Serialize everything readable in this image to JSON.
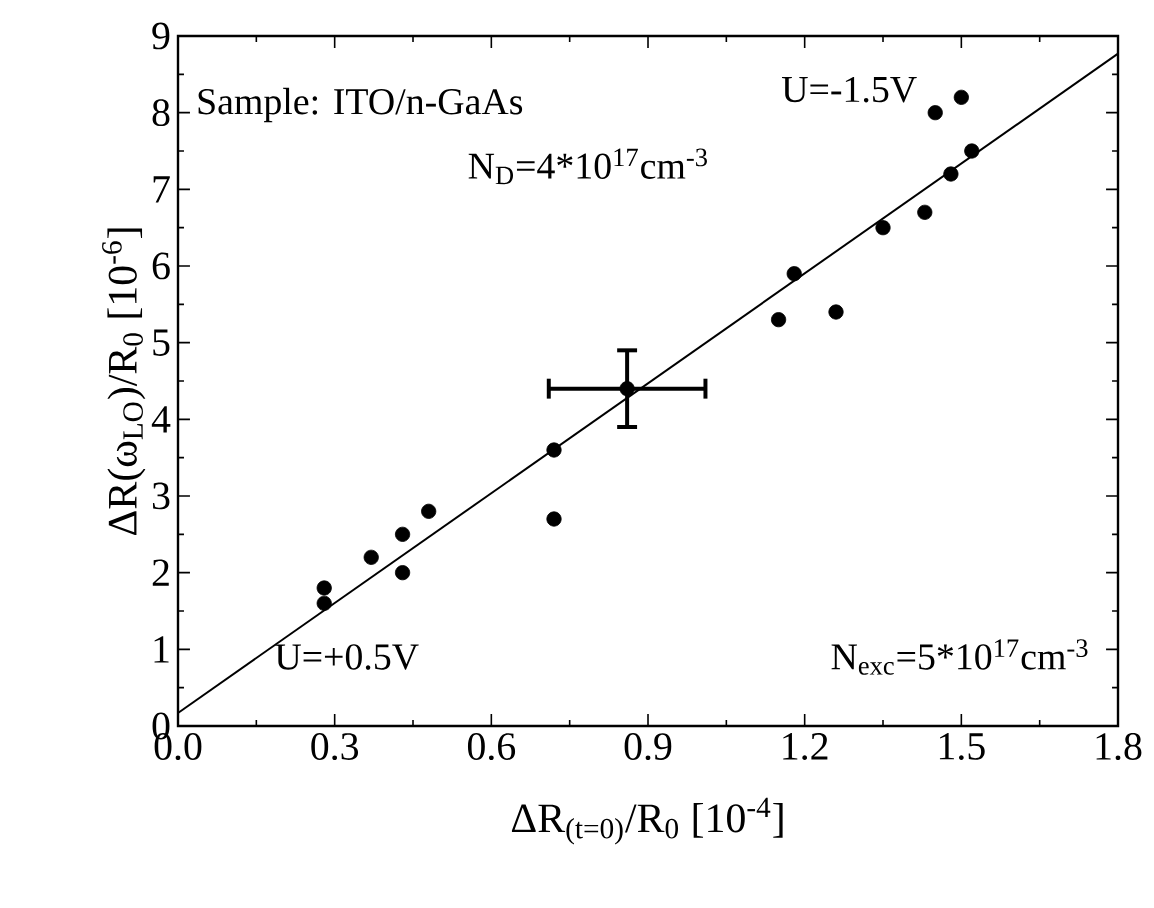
{
  "chart_data": {
    "type": "scatter",
    "xlabel": "ΔR$_{(t=0)}$/R$_{0}$ [10$^{-4}$]",
    "ylabel": "ΔR(ω$_{LO}$)/R$_{0}$ [10$^{-6}$]",
    "xlim": [
      0,
      1.8
    ],
    "ylim": [
      0,
      9
    ],
    "xticks": [
      {
        "value": 0,
        "label": "0.0"
      },
      0.3,
      0.6,
      0.9,
      1.2,
      1.5,
      1.8
    ],
    "yticks": [
      0,
      1,
      2,
      3,
      4,
      5,
      6,
      7,
      8,
      9
    ],
    "series": [
      {
        "type": "scatter",
        "marker": "circle",
        "color": "#000000",
        "x": [
          0.28,
          0.28,
          0.37,
          0.43,
          0.43,
          0.48,
          0.72,
          0.72,
          0.86,
          1.15,
          1.18,
          1.26,
          1.35,
          1.43,
          1.45,
          1.48,
          1.5,
          1.52
        ],
        "values": [
          1.6,
          1.8,
          2.2,
          2.0,
          2.5,
          2.8,
          3.6,
          2.7,
          4.4,
          5.3,
          5.9,
          5.4,
          6.5,
          6.7,
          8.0,
          7.2,
          8.2,
          7.5
        ],
        "errors": [
          null,
          null,
          null,
          null,
          null,
          null,
          null,
          null,
          0.5,
          null,
          null,
          null,
          null,
          null,
          null,
          null,
          null,
          null
        ],
        "xerrors": [
          null,
          null,
          null,
          null,
          null,
          null,
          null,
          null,
          0.15,
          null,
          null,
          null,
          null,
          null,
          null,
          null,
          null,
          null
        ]
      },
      {
        "type": "line",
        "marker": "none",
        "color": "#000000",
        "x": [
          0,
          1.8
        ],
        "values": [
          0.17,
          8.77
        ]
      }
    ],
    "annotations": [
      "Sample: ITO/n-GaAs",
      "N$_{D}$=4*10$^{17}$cm$^{-3}$",
      "U=-1.5V",
      "U=+0.5V",
      "N$_{exc}$=5*10$^{17}$cm$^{-3}$"
    ]
  }
}
